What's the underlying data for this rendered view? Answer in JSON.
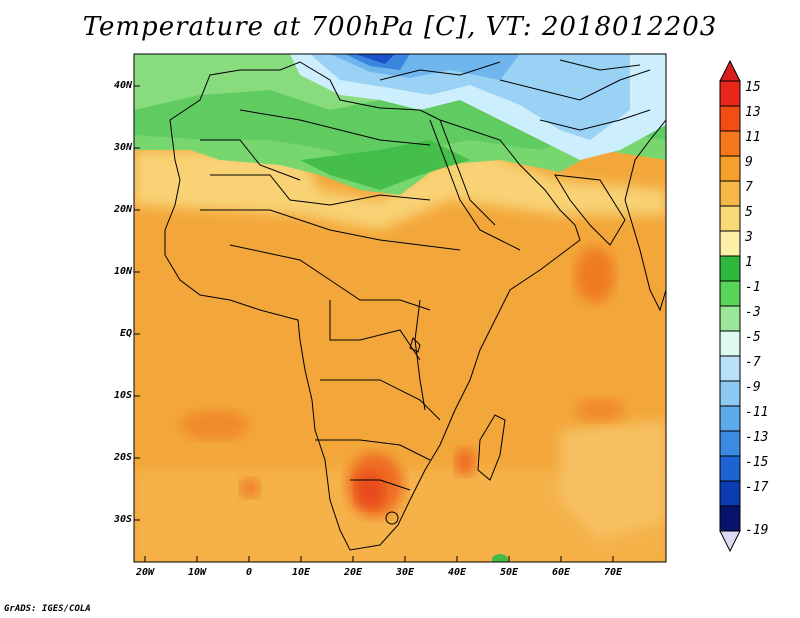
{
  "title": "Temperature at 700hPa [C], VT: 2018012203",
  "credit": "GrADS: IGES/COLA",
  "map": {
    "lat_labels": [
      "40N",
      "30N",
      "20N",
      "10N",
      "EQ",
      "10S",
      "20S",
      "30S"
    ],
    "lon_labels": [
      "20W",
      "10W",
      "0",
      "10E",
      "20E",
      "30E",
      "40E",
      "50E",
      "60E",
      "70E"
    ]
  },
  "legend": {
    "labels": [
      "15",
      "13",
      "11",
      "9",
      "7",
      "5",
      "3",
      "1",
      "-1",
      "-3",
      "-5",
      "-7",
      "-9",
      "-11",
      "-13",
      "-15",
      "-17",
      "-19"
    ],
    "colors": [
      "#e8261a",
      "#f24e14",
      "#f5781c",
      "#f5a02a",
      "#f5b848",
      "#f8d878",
      "#fbf0a6",
      "#2fb73e",
      "#5ad45a",
      "#9be69b",
      "#dcfaf0",
      "#b8e2f8",
      "#8ccaf2",
      "#5caaea",
      "#3c8ae2",
      "#1c64d4",
      "#0c3cb4",
      "#06146e"
    ],
    "top_color": "#d81e1e",
    "bottom_color": "#dcd8f5"
  }
}
